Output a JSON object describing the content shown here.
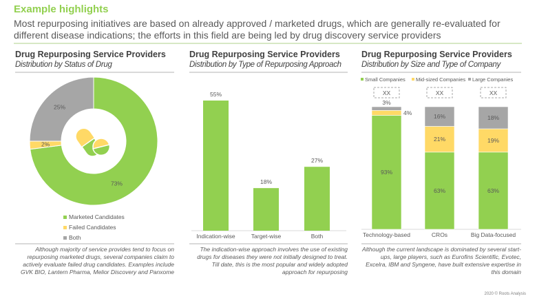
{
  "header": {
    "title": "Example highlights",
    "subtitle": "Most repurposing initiatives are based on already approved / marketed drugs, which are generally re-evaluated for different disease indications; the efforts in this field are being led by drug discovery service providers"
  },
  "panels": [
    {
      "heading": "Drug Repurposing Service Providers",
      "subheading": "Distribution by Status of Drug",
      "caption": "Although majority of service provides tend to focus on repurposing marketed drugs, several companies claim to actively evaluate failed drug candidates. Examples include GVK BIO, Lantern Pharma, Melior Discovery and Panxome"
    },
    {
      "heading": "Drug Repurposing Service Providers",
      "subheading": "Distribution by Type of Repurposing Approach",
      "caption": "The indication-wise approach involves the use of existing drugs for diseases they were not initially designed to treat. Till date, this is the most popular and widely adopted approach for repurposing"
    },
    {
      "heading": "Drug Repurposing Service Providers",
      "subheading": "Distribution by Size and Type of Company",
      "caption": "Although the current landscape is dominated by several start-ups, large players, such as Eurofins Scientific, Evotec, Excelra, IBM and Syngene, have built extensive expertise in this domain"
    }
  ],
  "colors": {
    "green": "#92d050",
    "yellow": "#ffd966",
    "gray": "#a6a6a6",
    "title": "#92d050"
  },
  "center_icon": "pills-icon",
  "chart_data": [
    {
      "type": "pie",
      "donut": true,
      "categories": [
        "Marketed Candidates",
        "Failed Candidates",
        "Both"
      ],
      "values": [
        73,
        2,
        25
      ],
      "labels": [
        "73%",
        "2%",
        "25%"
      ],
      "legend": "bottom"
    },
    {
      "type": "bar",
      "categories": [
        "Indication-wise",
        "Target-wise",
        "Both"
      ],
      "values": [
        55,
        18,
        27
      ],
      "labels": [
        "55%",
        "18%",
        "27%"
      ]
    },
    {
      "type": "bar",
      "stacked": true,
      "categories": [
        "Technology-based",
        "CROs",
        "Big Data-focused"
      ],
      "annotations": [
        "XX",
        "XX",
        "XX"
      ],
      "legend": "top",
      "series": [
        {
          "name": "Small Companies",
          "values": [
            93,
            63,
            63
          ],
          "labels": [
            "93%",
            "63%",
            "63%"
          ]
        },
        {
          "name": "Mid-sized Companies",
          "values": [
            4,
            21,
            19
          ],
          "labels": [
            "4%",
            "21%",
            "19%"
          ]
        },
        {
          "name": "Large Companies",
          "values": [
            3,
            16,
            18
          ],
          "labels": [
            "3%",
            "16%",
            "18%"
          ]
        }
      ]
    }
  ],
  "footer": "2020 © Roots Analysis"
}
